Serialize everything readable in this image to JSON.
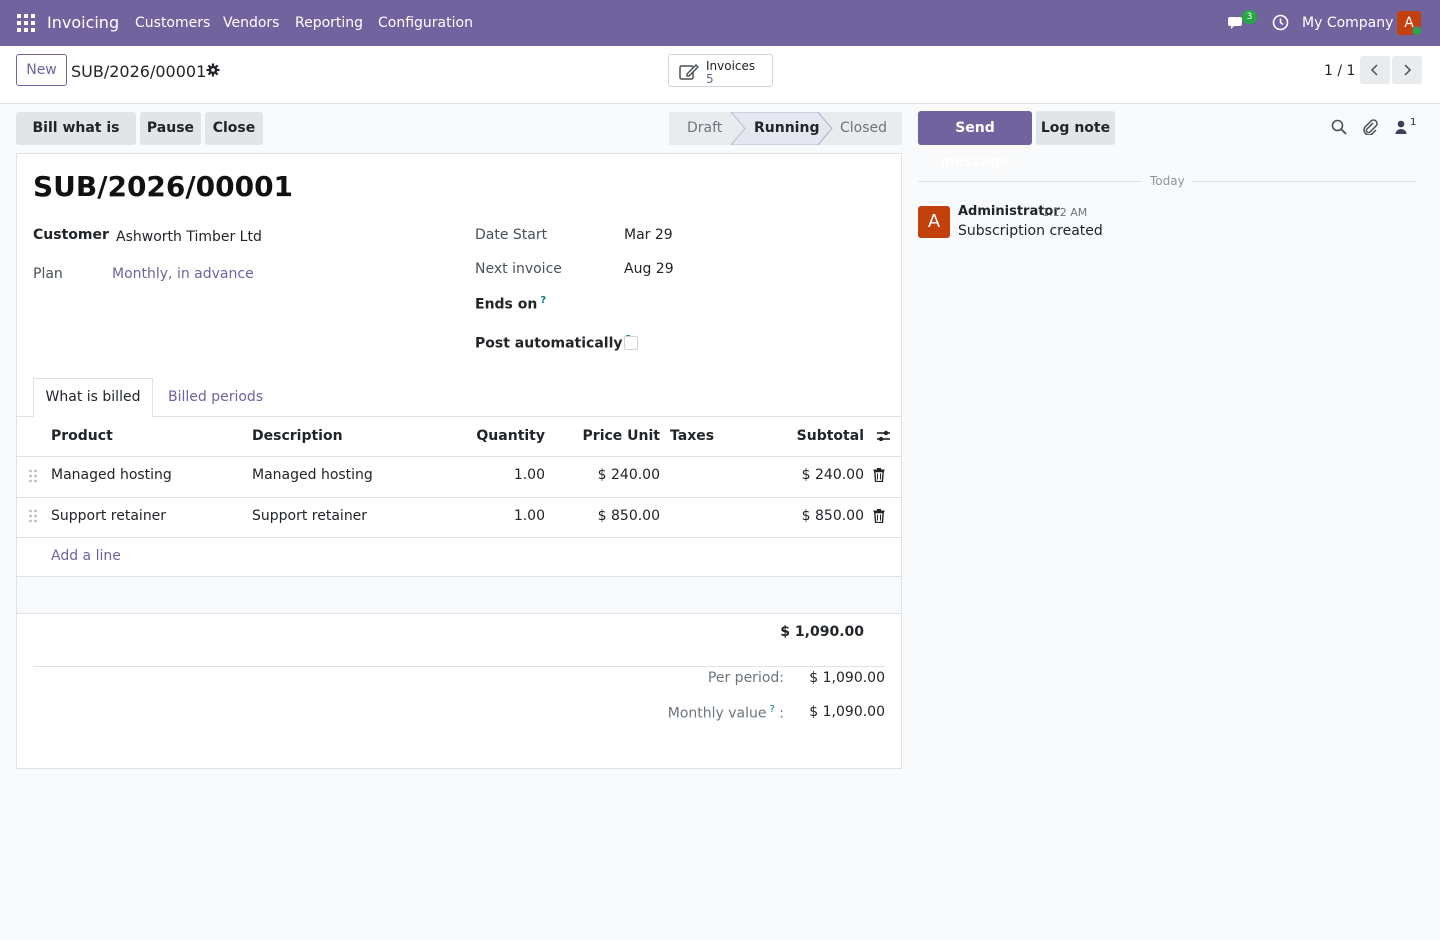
{
  "navbar": {
    "app_name": "Invoicing",
    "menu": [
      "Customers",
      "Vendors",
      "Reporting",
      "Configuration"
    ],
    "messages_badge": "3",
    "company": "My Company",
    "user_initial": "A"
  },
  "control": {
    "new_label": "New",
    "breadcrumb": "SUB/2026/00001",
    "smart_button": {
      "label": "Invoices",
      "value": "5"
    },
    "pager": "1 / 1"
  },
  "actions": {
    "bill": "Bill what is due",
    "pause": "Pause",
    "close": "Close"
  },
  "stages": {
    "items": [
      "Draft",
      "Running",
      "Closed"
    ],
    "active": "Running"
  },
  "form": {
    "title": "SUB/2026/00001",
    "customer_label": "Customer",
    "customer_value": "Ashworth Timber Ltd",
    "plan_label": "Plan",
    "plan_value": "Monthly, in advance",
    "date_start_label": "Date Start",
    "date_start_value": "Mar 29",
    "next_invoice_label": "Next invoice",
    "next_invoice_value": "Aug 29",
    "ends_on_label": "Ends on",
    "post_auto_label": "Post automatically",
    "help_mark": "?"
  },
  "tabs": [
    "What is billed",
    "Billed periods"
  ],
  "table": {
    "headers": [
      "Product",
      "Description",
      "Quantity",
      "Price Unit",
      "Taxes",
      "Subtotal"
    ],
    "rows": [
      {
        "product": "Managed hosting",
        "description": "Managed hosting",
        "quantity": "1.00",
        "price": "$ 240.00",
        "taxes": "",
        "subtotal": "$ 240.00"
      },
      {
        "product": "Support retainer",
        "description": "Support retainer",
        "quantity": "1.00",
        "price": "$ 850.00",
        "taxes": "",
        "subtotal": "$ 850.00"
      }
    ],
    "add_line": "Add a line",
    "total": "$ 1,090.00"
  },
  "summary": {
    "per_period_label": "Per period:",
    "per_period_value": "$ 1,090.00",
    "monthly_label": "Monthly value",
    "monthly_suffix": ":",
    "monthly_value": "$ 1,090.00"
  },
  "chatter": {
    "send_message": "Send message",
    "log_note": "Log note",
    "followers_count": "1",
    "date_separator": "Today",
    "message": {
      "avatar": "A",
      "author": "Administrator",
      "time": "1:12 AM",
      "body": "Subscription created"
    }
  },
  "colors": {
    "brand": "#71639e",
    "avatar": "#c2410c",
    "online": "#28a745"
  }
}
